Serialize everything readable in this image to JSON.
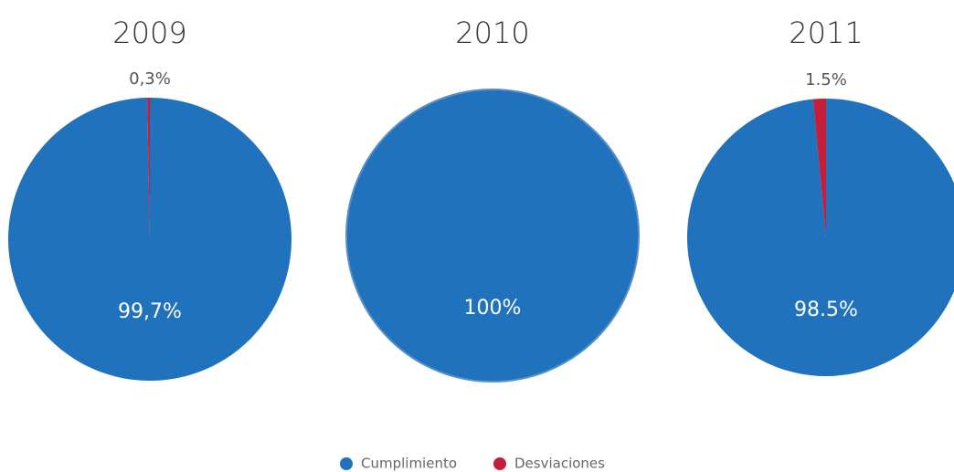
{
  "chart_data": [
    {
      "type": "pie",
      "title": "2009",
      "categories": [
        "Cumplimiento",
        "Desviaciones"
      ],
      "values": [
        99.7,
        0.3
      ],
      "value_labels": [
        "99,7%",
        "0,3%"
      ],
      "colors": [
        "#1f72bb",
        "#c41e3a"
      ]
    },
    {
      "type": "pie",
      "title": "2010",
      "categories": [
        "Cumplimiento",
        "Desviaciones"
      ],
      "values": [
        100,
        0
      ],
      "value_labels": [
        "100%",
        null
      ],
      "colors": [
        "#1f72bb",
        "#c41e3a"
      ]
    },
    {
      "type": "pie",
      "title": "2011",
      "categories": [
        "Cumplimiento",
        "Desviaciones"
      ],
      "values": [
        98.5,
        1.5
      ],
      "value_labels": [
        "98.5%",
        "1.5%"
      ],
      "colors": [
        "#1f72bb",
        "#c41e3a"
      ]
    }
  ]
}
